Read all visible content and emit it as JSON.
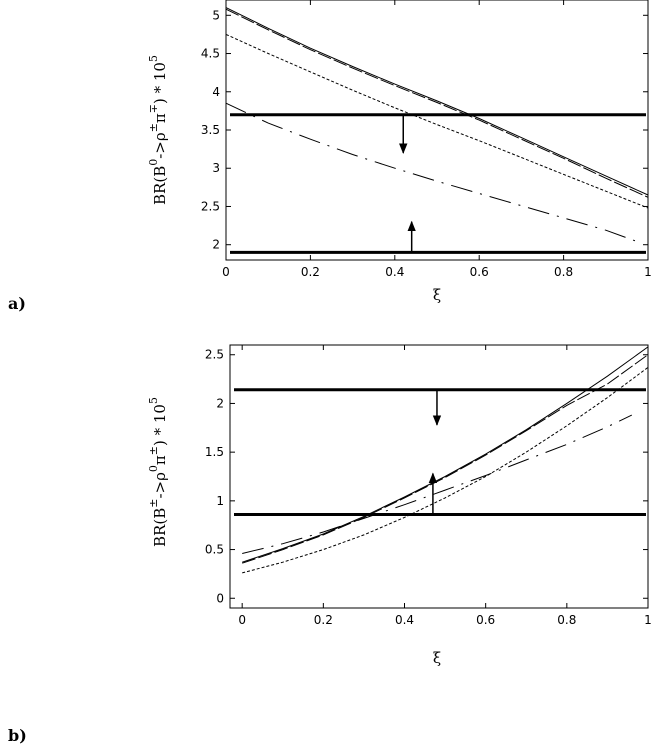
{
  "chart_data": [
    {
      "type": "line",
      "panel_label": "a)",
      "xlabel": "ξ",
      "ylabel": "BR(B^0 -> ρ^± π^∓) * 10^5",
      "xlim": [
        0,
        1
      ],
      "ylim": [
        1.8,
        5.2
      ],
      "xticks": [
        0,
        0.2,
        0.4,
        0.6,
        0.8,
        1
      ],
      "xtick_labels": [
        "0",
        "0.2",
        "0.4",
        "0.6",
        "0.8",
        "1"
      ],
      "yticks": [
        2,
        2.5,
        3,
        3.5,
        4,
        4.5,
        5
      ],
      "ytick_labels": [
        "2",
        "2.5",
        "3",
        "3.5",
        "4",
        "4.5",
        "5"
      ],
      "series": [
        {
          "style": "solid",
          "x": [
            0,
            0.1,
            0.2,
            0.3,
            0.4,
            0.5,
            0.6,
            0.7,
            0.8,
            0.9,
            1.0
          ],
          "y": [
            5.1,
            4.83,
            4.57,
            4.33,
            4.1,
            3.88,
            3.65,
            3.4,
            3.15,
            2.9,
            2.65
          ]
        },
        {
          "style": "long-dash",
          "x": [
            0,
            0.1,
            0.2,
            0.3,
            0.4,
            0.5,
            0.6,
            0.7,
            0.8,
            0.9,
            1.0
          ],
          "y": [
            5.08,
            4.81,
            4.55,
            4.31,
            4.08,
            3.86,
            3.63,
            3.38,
            3.13,
            2.87,
            2.62
          ]
        },
        {
          "style": "short-dash",
          "x": [
            0,
            0.1,
            0.2,
            0.3,
            0.4,
            0.5,
            0.6,
            0.7,
            0.8,
            0.9,
            1.0
          ],
          "y": [
            4.75,
            4.5,
            4.26,
            4.02,
            3.79,
            3.57,
            3.36,
            3.14,
            2.92,
            2.7,
            2.48
          ]
        },
        {
          "style": "dash-dot",
          "x": [
            0,
            0.1,
            0.2,
            0.3,
            0.4,
            0.5,
            0.6,
            0.7,
            0.8,
            0.9,
            0.97
          ],
          "y": [
            3.85,
            3.59,
            3.38,
            3.18,
            3.0,
            2.83,
            2.67,
            2.51,
            2.35,
            2.19,
            2.05
          ]
        }
      ],
      "bounds": [
        {
          "y": 3.7,
          "arrow_x": 0.42,
          "arrow_to": 3.2
        },
        {
          "y": 1.9,
          "arrow_x": 0.44,
          "arrow_to": 2.3
        }
      ]
    },
    {
      "type": "line",
      "panel_label": "b)",
      "xlabel": "ξ",
      "ylabel": "BR(B^± -> ρ^0 π^±) * 10^5",
      "xlim": [
        -0.03,
        1
      ],
      "ylim": [
        -0.1,
        2.6
      ],
      "xticks": [
        0,
        0.2,
        0.4,
        0.6,
        0.8,
        1
      ],
      "xtick_labels": [
        "0",
        "0.2",
        "0.4",
        "0.6",
        "0.8",
        "1"
      ],
      "yticks": [
        0,
        0.5,
        1,
        1.5,
        2,
        2.5
      ],
      "ytick_labels": [
        "0",
        "0.5",
        "1",
        "1.5",
        "2",
        "2.5"
      ],
      "series": [
        {
          "style": "solid",
          "x": [
            0,
            0.1,
            0.2,
            0.3,
            0.4,
            0.5,
            0.6,
            0.7,
            0.8,
            0.9,
            1.0
          ],
          "y": [
            0.37,
            0.51,
            0.66,
            0.84,
            1.04,
            1.25,
            1.48,
            1.73,
            2.0,
            2.28,
            2.58
          ]
        },
        {
          "style": "long-dash",
          "x": [
            0,
            0.1,
            0.2,
            0.3,
            0.4,
            0.5,
            0.6,
            0.7,
            0.8,
            0.9,
            1.0
          ],
          "y": [
            0.36,
            0.5,
            0.65,
            0.83,
            1.03,
            1.24,
            1.47,
            1.72,
            1.98,
            2.2,
            2.5
          ]
        },
        {
          "style": "short-dash",
          "x": [
            0,
            0.1,
            0.2,
            0.3,
            0.4,
            0.5,
            0.6,
            0.7,
            0.8,
            0.9,
            1.0
          ],
          "y": [
            0.26,
            0.37,
            0.5,
            0.65,
            0.83,
            1.03,
            1.25,
            1.5,
            1.77,
            2.06,
            2.37
          ]
        },
        {
          "style": "dash-dot",
          "x": [
            0,
            0.1,
            0.2,
            0.3,
            0.4,
            0.5,
            0.6,
            0.7,
            0.8,
            0.9,
            0.96
          ],
          "y": [
            0.46,
            0.56,
            0.68,
            0.82,
            0.96,
            1.11,
            1.26,
            1.42,
            1.58,
            1.76,
            1.88
          ]
        }
      ],
      "bounds": [
        {
          "y": 2.14,
          "arrow_x": 0.48,
          "arrow_to": 1.78
        },
        {
          "y": 0.86,
          "arrow_x": 0.47,
          "arrow_to": 1.28
        }
      ]
    }
  ]
}
